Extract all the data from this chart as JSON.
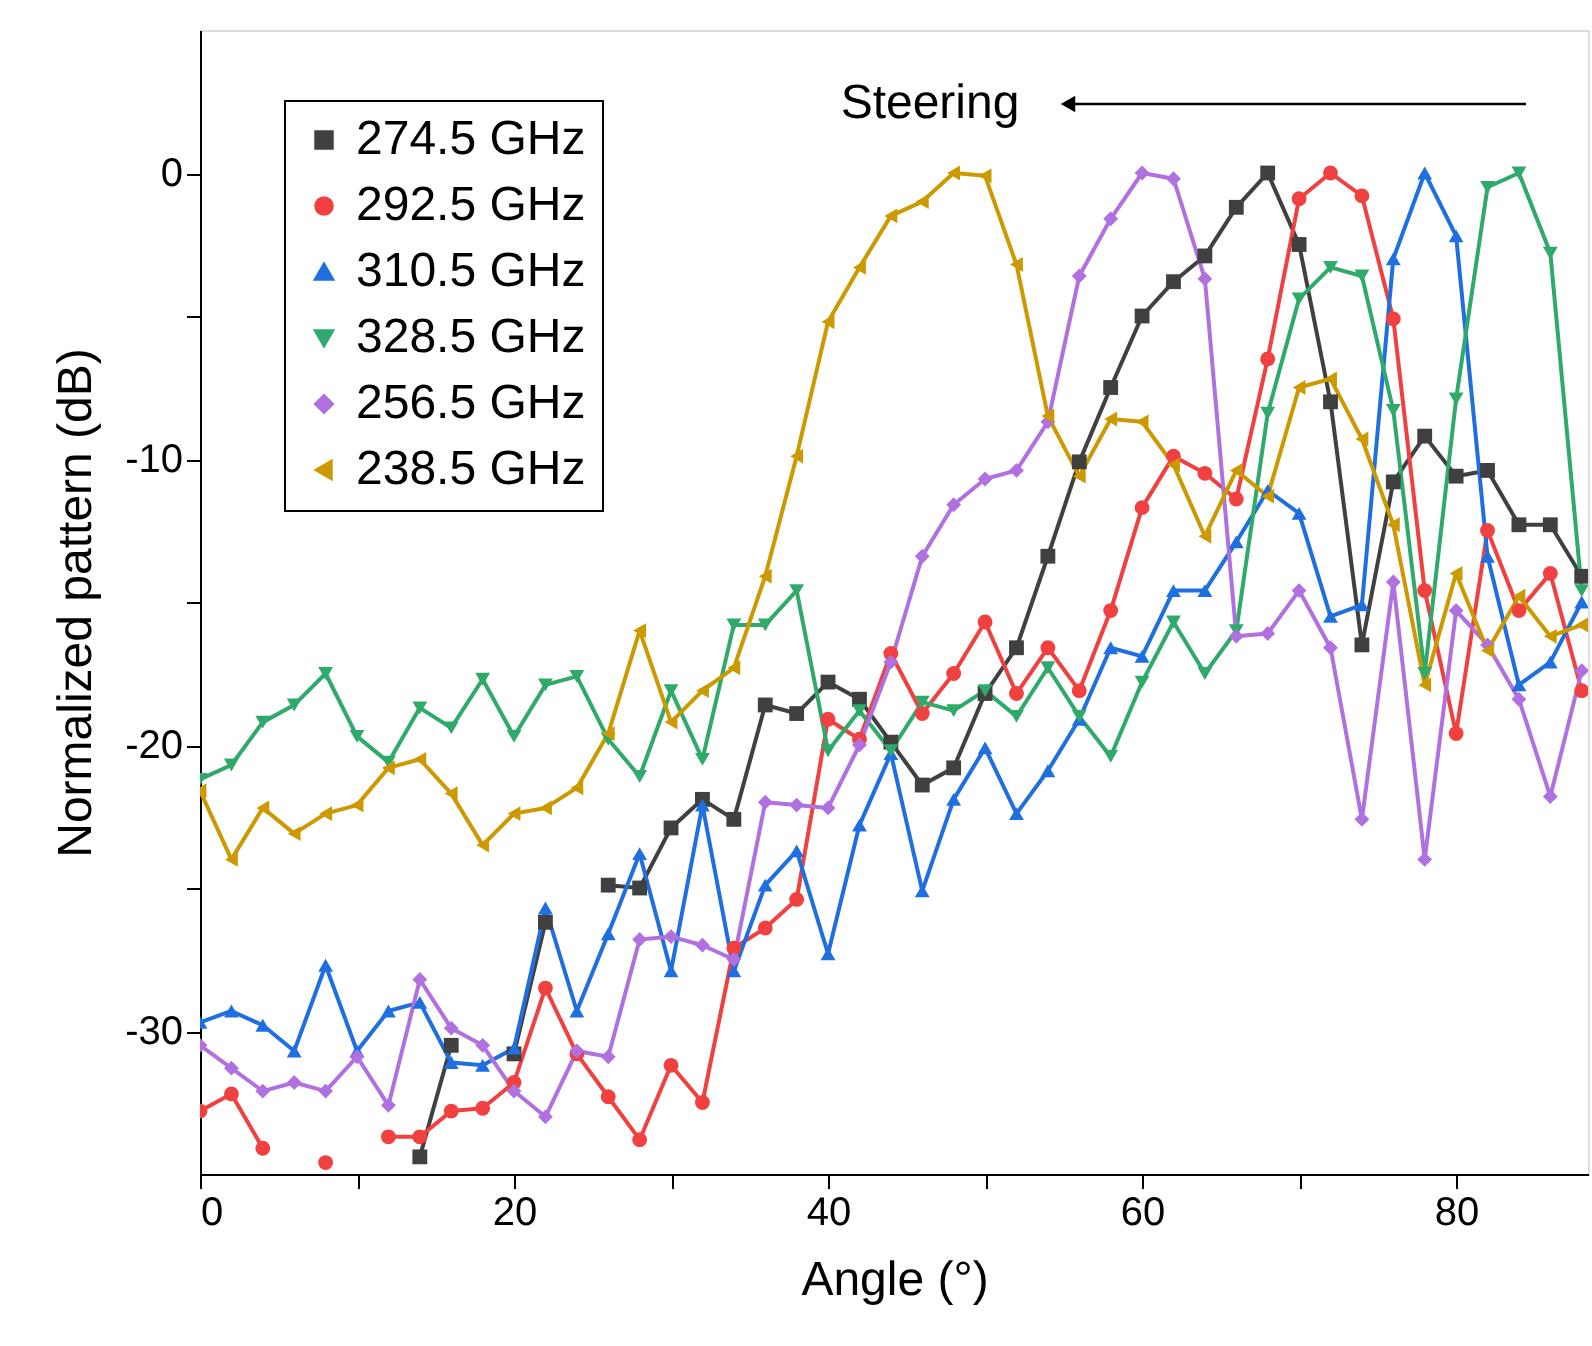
{
  "chart_data": {
    "type": "line",
    "xlabel": "Angle (°)",
    "ylabel": "Normalized pattern (dB)",
    "x": [
      0,
      2,
      4,
      6,
      8,
      10,
      12,
      14,
      16,
      18,
      20,
      22,
      24,
      26,
      28,
      30,
      32,
      34,
      36,
      38,
      40,
      42,
      44,
      46,
      48,
      50,
      52,
      54,
      56,
      58,
      60,
      62,
      64,
      66,
      68,
      70,
      72,
      74,
      76,
      78,
      80,
      82,
      84,
      86,
      88
    ],
    "xlim": [
      0,
      88.4
    ],
    "ylim": [
      -35,
      5
    ],
    "xticks": [
      0,
      {
        "value": 10,
        "label": null
      },
      20,
      {
        "value": 30,
        "label": null
      },
      40,
      {
        "value": 50,
        "label": null
      },
      60,
      {
        "value": 70,
        "label": null
      },
      80
    ],
    "yticks": [
      -30,
      {
        "value": -25,
        "label": null
      },
      -20,
      {
        "value": -15,
        "label": null
      },
      -10,
      {
        "value": -5,
        "label": null
      },
      0
    ],
    "grid": false,
    "legend": "top left",
    "line_style": "solid",
    "annotations": [
      "Steering"
    ],
    "series": [
      {
        "name": "274.5 GHz",
        "color": "#404040",
        "marker": "square",
        "values": [
          null,
          null,
          null,
          null,
          null,
          null,
          null,
          -34.4,
          -30.5,
          null,
          -30.8,
          -26.2,
          null,
          -24.9,
          -25.0,
          -22.9,
          -21.9,
          -22.6,
          -18.6,
          -18.9,
          -17.8,
          -18.4,
          -19.9,
          -21.4,
          -20.8,
          -18.2,
          -16.6,
          -13.4,
          -10.1,
          -7.5,
          -5.0,
          -3.8,
          -2.9,
          -1.2,
          0.0,
          -2.5,
          -8.0,
          -16.5,
          -10.8,
          -9.2,
          -10.6,
          -10.4,
          -12.3,
          -12.3,
          -14.1
        ]
      },
      {
        "name": "292.5 GHz",
        "color": "#f04040",
        "marker": "circle",
        "values": [
          -32.8,
          -32.2,
          -34.1,
          null,
          -34.6,
          null,
          -33.7,
          -33.7,
          -32.8,
          -32.7,
          -31.8,
          -28.5,
          -30.8,
          -32.3,
          -33.8,
          -31.2,
          -32.5,
          -27.1,
          -26.4,
          -25.4,
          -19.1,
          -19.8,
          -16.8,
          -18.9,
          -17.5,
          -15.7,
          -18.2,
          -16.6,
          -18.1,
          -15.3,
          -11.7,
          -9.9,
          -10.5,
          -11.4,
          -6.5,
          -0.9,
          0.0,
          -0.8,
          -5.1,
          -14.6,
          -19.6,
          -12.5,
          -15.3,
          -14.0,
          -18.1
        ]
      },
      {
        "name": "310.5 GHz",
        "color": "#1f6fe0",
        "marker": "triangle",
        "values": [
          -29.7,
          -29.3,
          -29.8,
          -30.7,
          -27.7,
          -30.7,
          -29.3,
          -29.0,
          -31.1,
          -31.2,
          -30.6,
          -25.7,
          -29.3,
          -26.6,
          -23.8,
          -27.9,
          -22.1,
          -27.9,
          -24.9,
          -23.7,
          -27.3,
          -22.8,
          -20.3,
          -25.1,
          -21.9,
          -20.1,
          -22.4,
          -20.9,
          -19.1,
          -16.6,
          -16.9,
          -14.6,
          -14.6,
          -12.9,
          -11.1,
          -11.9,
          -15.5,
          -15.1,
          -3.0,
          0.0,
          -2.2,
          -13.4,
          -17.9,
          -17.1,
          -15.0
        ]
      },
      {
        "name": "328.5 GHz",
        "color": "#2faa6a",
        "marker": "triangle-down",
        "values": [
          -21.2,
          -20.7,
          -19.2,
          -18.6,
          -17.5,
          -19.7,
          -20.6,
          -18.7,
          -19.4,
          -17.7,
          -19.7,
          -17.9,
          -17.6,
          -19.8,
          -21.1,
          -18.1,
          -20.5,
          -15.8,
          -15.8,
          -14.6,
          -20.2,
          -18.8,
          -20.2,
          -18.5,
          -18.8,
          -18.1,
          -19.0,
          -17.3,
          -19.0,
          -20.4,
          -17.8,
          -15.7,
          -17.5,
          -16.0,
          -8.4,
          -4.4,
          -3.3,
          -3.6,
          -8.3,
          -17.5,
          -7.9,
          -0.5,
          0.0,
          -2.8,
          -14.6
        ]
      },
      {
        "name": "256.5 GHz",
        "color": "#b070e0",
        "marker": "diamond",
        "values": [
          -30.5,
          -31.3,
          -32.1,
          -31.8,
          -32.1,
          -30.9,
          -32.6,
          -28.2,
          -29.9,
          -30.5,
          -32.1,
          -33.0,
          -30.7,
          -30.9,
          -26.8,
          -26.7,
          -27.0,
          -27.5,
          -22.0,
          -22.1,
          -22.2,
          -20.0,
          -17.1,
          -13.4,
          -11.6,
          -10.7,
          -10.4,
          -8.7,
          -3.6,
          -1.6,
          0.0,
          -0.2,
          -3.7,
          -16.2,
          -16.1,
          -14.6,
          -16.6,
          -22.6,
          -14.3,
          -24.0,
          -15.3,
          -16.5,
          -18.4,
          -21.8,
          -17.4
        ]
      },
      {
        "name": "238.5 GHz",
        "color": "#cc9900",
        "marker": "triangle-left",
        "values": [
          -21.6,
          -24.0,
          -22.2,
          -23.1,
          -22.4,
          -22.1,
          -20.8,
          -20.5,
          -21.7,
          -23.5,
          -22.4,
          -22.2,
          -21.5,
          -19.6,
          -16.0,
          -19.2,
          -18.1,
          -17.3,
          -14.1,
          -9.9,
          -5.2,
          -3.3,
          -1.5,
          -1.0,
          0.0,
          -0.1,
          -3.2,
          -8.5,
          -10.6,
          -8.6,
          -8.7,
          -10.2,
          -12.7,
          -10.4,
          -11.3,
          -7.5,
          -7.2,
          -9.3,
          -12.3,
          -17.9,
          -14.0,
          -16.7,
          -14.8,
          -16.2,
          -15.8
        ]
      }
    ]
  }
}
